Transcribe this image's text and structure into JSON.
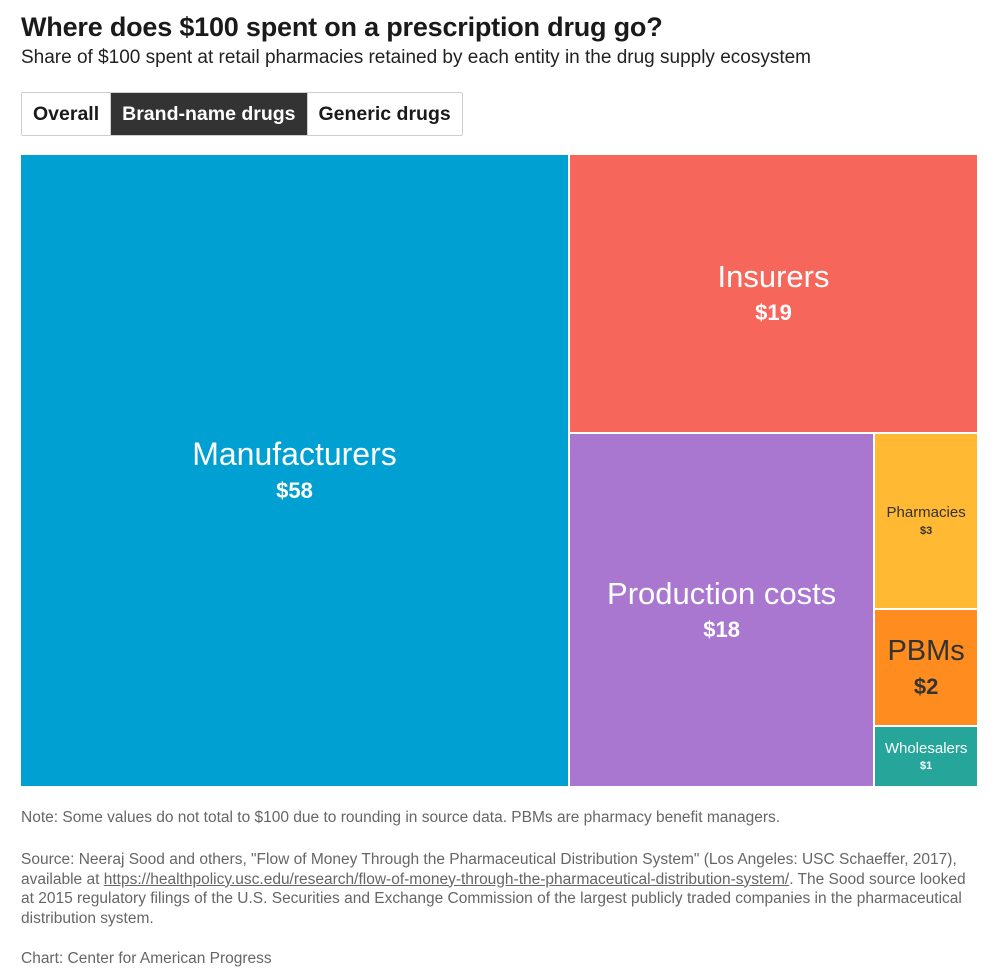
{
  "header": {
    "title": "Where does $100 spent on a prescription drug go?",
    "subtitle": "Share of $100 spent at retail pharmacies retained by each entity in the drug supply ecosystem"
  },
  "tabs": [
    {
      "label": "Overall",
      "active": false
    },
    {
      "label": "Brand-name drugs",
      "active": true
    },
    {
      "label": "Generic drugs",
      "active": false
    }
  ],
  "chart_data": {
    "type": "treemap",
    "title": "Where does $100 spent on a prescription drug go?",
    "subtitle": "Share of $100 spent at retail pharmacies retained by each entity in the drug supply ecosystem",
    "unit": "$",
    "selected_view": "Brand-name drugs",
    "items": [
      {
        "name": "Manufacturers",
        "value": 58,
        "label": "$58",
        "color": "#00A0D2"
      },
      {
        "name": "Insurers",
        "value": 19,
        "label": "$19",
        "color": "#F7665A"
      },
      {
        "name": "Production costs",
        "value": 18,
        "label": "$18",
        "color": "#A977CF"
      },
      {
        "name": "Pharmacies",
        "value": 3,
        "label": "$3",
        "color": "#FFB933"
      },
      {
        "name": "PBMs",
        "value": 2,
        "label": "$2",
        "color": "#FF8C1F"
      },
      {
        "name": "Wholesalers",
        "value": 1,
        "label": "$1",
        "color": "#26A69A"
      }
    ]
  },
  "footer": {
    "note": "Note: Some values do not total to $100 due to rounding in source data. PBMs are pharmacy benefit managers.",
    "source_prefix": "Source: Neeraj Sood and others, \"Flow of Money Through the Pharmaceutical Distribution System\" (Los Angeles: USC Schaeffer, 2017), available at ",
    "source_link": "https://healthpolicy.usc.edu/research/flow-of-money-through-the-pharmaceutical-distribution-system/",
    "source_suffix": ". The Sood source looked at 2015 regulatory filings of the U.S. Securities and Exchange Commission of the largest publicly traded companies in the pharmaceutical distribution system.",
    "credit": "Chart: Center for American Progress"
  }
}
